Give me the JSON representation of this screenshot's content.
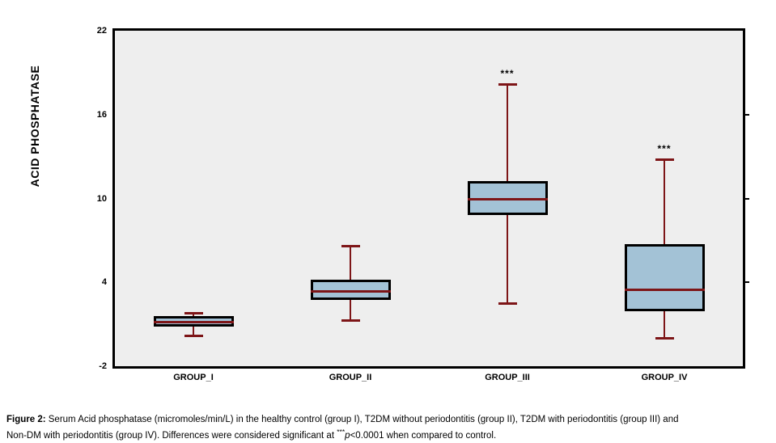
{
  "chart_data": {
    "type": "boxplot",
    "title": "",
    "ylabel": "ACID PHOSPHATASE",
    "xlabel": "",
    "ylim": [
      -2,
      22
    ],
    "yticks": [
      22,
      16,
      10,
      4,
      -2
    ],
    "right_axis_tick_values": [
      16,
      10,
      4
    ],
    "grid": false,
    "legend_position": "none",
    "categories": [
      "GROUP_I",
      "GROUP_II",
      "GROUP_III",
      "GROUP_IV"
    ],
    "series": [
      {
        "group": "GROUP_I",
        "whisker_low": 0.2,
        "q1": 0.9,
        "median": 1.2,
        "q3": 1.5,
        "whisker_high": 1.8,
        "significance": ""
      },
      {
        "group": "GROUP_II",
        "whisker_low": 1.3,
        "q1": 2.8,
        "median": 3.35,
        "q3": 4.15,
        "whisker_high": 6.6,
        "significance": ""
      },
      {
        "group": "GROUP_III",
        "whisker_low": 2.5,
        "q1": 8.9,
        "median": 10.0,
        "q3": 11.2,
        "whisker_high": 18.2,
        "significance": "***"
      },
      {
        "group": "GROUP_IV",
        "whisker_low": 0.0,
        "q1": 2.0,
        "median": 3.5,
        "q3": 6.7,
        "whisker_high": 12.8,
        "significance": "***"
      }
    ],
    "colors": {
      "box_fill": "#a3c2d6",
      "box_border": "#000000",
      "median_line": "#7d1517",
      "whisker": "#7d1517",
      "plot_background": "#eeeeee",
      "page_background": "#ffffff",
      "text": "#000000"
    }
  },
  "caption": {
    "prefix": "Figure 2:",
    "line1": " Serum Acid phosphatase (micromoles/min/L) in the healthy control (group I), T2DM without periodontitis (group II), T2DM with periodontitis (group III) and",
    "line2_before": "Non-DM with periodontitis (group IV). Differences were considered significant at ",
    "line2_sig": "***",
    "line2_p": "p",
    "line2_after": "<0.0001 when compared to control."
  }
}
